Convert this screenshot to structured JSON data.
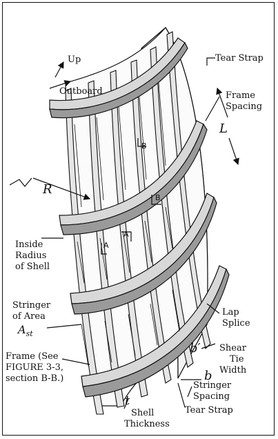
{
  "labels": {
    "up": "Up",
    "outboard": "Outboard",
    "tear_strap_top": "Tear Strap",
    "frame_spacing_1": "Frame",
    "frame_spacing_2": "Spacing",
    "L": "L",
    "R": "R",
    "inside_radius_1": "Inside",
    "inside_radius_2": "Radius",
    "inside_radius_3": "of Shell",
    "stringer_1": "Stringer",
    "stringer_2": "of Area",
    "ast_main": "A",
    "ast_sub": "st",
    "frame_see_1": "Frame (See",
    "frame_see_2": "FIGURE 3-3,",
    "frame_see_3": "section B-B.)",
    "lap_splice_1": "Lap",
    "lap_splice_2": "Splice",
    "b_prime": "b′",
    "b": "b",
    "shear_tie_1": "Shear",
    "shear_tie_2": "Tie",
    "shear_tie_3": "Width",
    "stringer_spacing_1": "Stringer",
    "stringer_spacing_2": "Spacing",
    "t": "t",
    "shell_thickness_1": "Shell",
    "shell_thickness_2": "Thickness",
    "tear_strap_bottom": "Tear Strap",
    "section_B_top": "B",
    "section_B_mid": "B",
    "section_A_left": "A",
    "section_A_mid": "A"
  },
  "colors": {
    "line": "#111111",
    "fill_light": "#f4f4f4",
    "fill_mid": "#d8d8d8",
    "fill_dark": "#9a9a9a"
  }
}
